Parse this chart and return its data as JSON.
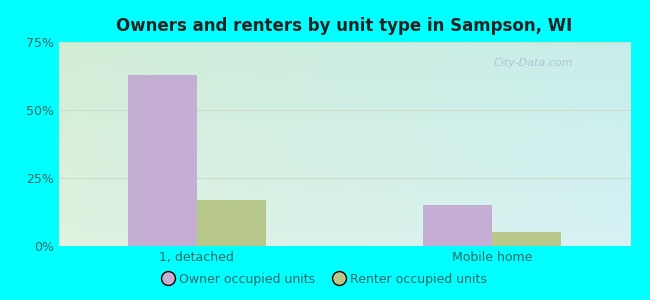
{
  "title": "Owners and renters by unit type in Sampson, WI",
  "categories": [
    "1, detached",
    "Mobile home"
  ],
  "owner_values": [
    63,
    15
  ],
  "renter_values": [
    17,
    5
  ],
  "owner_color": "#c4aed4",
  "renter_color": "#b8c88a",
  "ylim": [
    0,
    75
  ],
  "yticks": [
    0,
    25,
    50,
    75
  ],
  "yticklabels": [
    "0%",
    "25%",
    "50%",
    "75%"
  ],
  "legend_owner": "Owner occupied units",
  "legend_renter": "Renter occupied units",
  "bg_outer": "#00ffff",
  "bg_plot_left": "#d8f0d8",
  "bg_plot_right": "#d8f0f0",
  "bar_width": 0.35,
  "group_positions": [
    1.0,
    2.5
  ],
  "title_fontsize": 12,
  "tick_fontsize": 9,
  "legend_fontsize": 9,
  "text_color": "#336666",
  "grid_color": "#ccddcc",
  "watermark": "City-Data.com"
}
